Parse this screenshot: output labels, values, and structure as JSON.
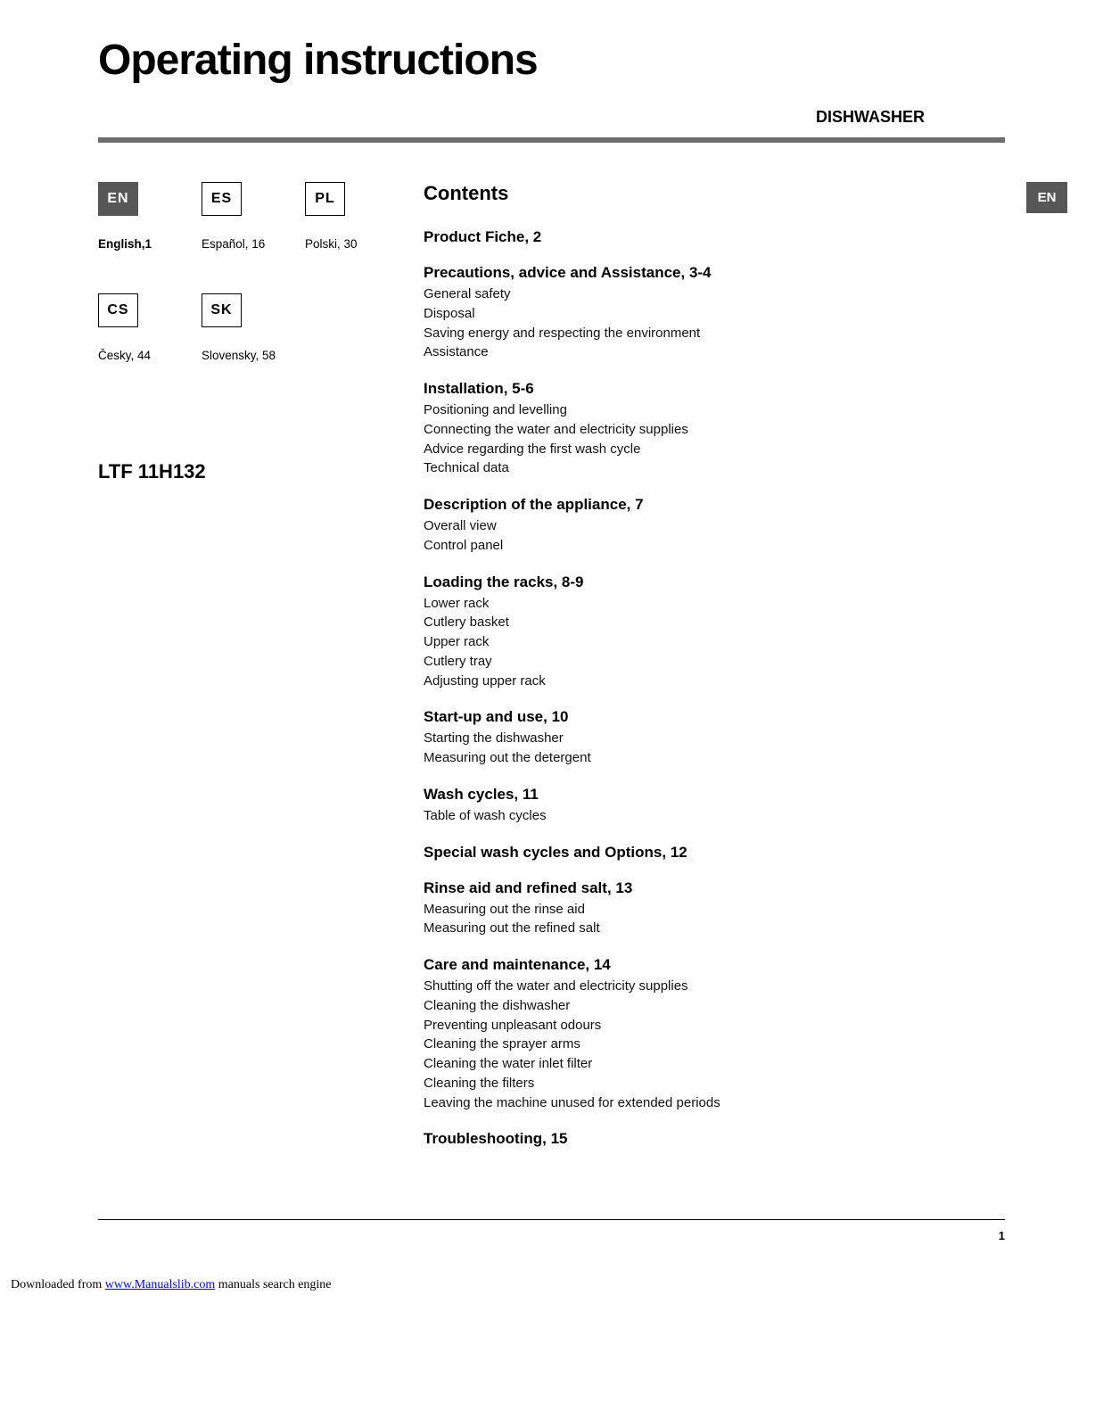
{
  "header": {
    "title": "Operating instructions",
    "subtitle": "DISHWASHER"
  },
  "sideBadge": "EN",
  "languages": {
    "row1": [
      {
        "code": "EN",
        "label": "English,1",
        "filled": true,
        "bold": true
      },
      {
        "code": "ES",
        "label": "Español, 16",
        "filled": false,
        "bold": false
      },
      {
        "code": "PL",
        "label": "Polski, 30",
        "filled": false,
        "bold": false
      }
    ],
    "row2": [
      {
        "code": "CS",
        "label": "Česky, 44",
        "filled": false,
        "bold": false
      },
      {
        "code": "SK",
        "label": "Slovensky, 58",
        "filled": false,
        "bold": false
      }
    ]
  },
  "model": "LTF 11H132",
  "contents": {
    "title": "Contents",
    "sections": [
      {
        "title": "Product Fiche, 2",
        "items": []
      },
      {
        "title": "Precautions, advice and Assistance, 3-4",
        "items": [
          "General safety",
          "Disposal",
          "Saving energy and respecting the environment",
          "Assistance"
        ]
      },
      {
        "title": "Installation, 5-6",
        "items": [
          "Positioning and levelling",
          "Connecting the water and electricity supplies",
          "Advice regarding the first wash cycle",
          "Technical data"
        ]
      },
      {
        "title": "Description of the appliance, 7",
        "items": [
          "Overall view",
          "Control panel"
        ]
      },
      {
        "title": "Loading the racks, 8-9",
        "items": [
          "Lower rack",
          "Cutlery basket",
          "Upper rack",
          "Cutlery tray",
          "Adjusting upper rack"
        ]
      },
      {
        "title": "Start-up and use, 10",
        "items": [
          "Starting the dishwasher",
          "Measuring out the detergent"
        ]
      },
      {
        "title": "Wash cycles, 11",
        "items": [
          "Table of wash cycles"
        ]
      },
      {
        "title": "Special wash cycles and Options, 12",
        "items": []
      },
      {
        "title": "Rinse aid and refined salt, 13",
        "items": [
          "Measuring out the rinse aid",
          "Measuring out the refined salt"
        ]
      },
      {
        "title": "Care and maintenance, 14",
        "items": [
          "Shutting off the water and electricity supplies",
          "Cleaning the dishwasher",
          "Preventing unpleasant odours",
          "Cleaning the sprayer arms",
          "Cleaning the water inlet filter",
          "Cleaning the filters",
          "Leaving the machine unused for extended periods"
        ]
      },
      {
        "title": "Troubleshooting, 15",
        "items": []
      }
    ]
  },
  "pageNumber": "1",
  "footer": {
    "prefix": "Downloaded from ",
    "linkText": "www.Manualslib.com",
    "linkUrl": "#",
    "suffix": " manuals search engine"
  }
}
